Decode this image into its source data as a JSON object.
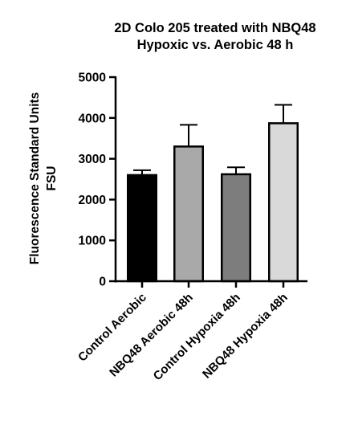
{
  "chart_data": {
    "type": "bar",
    "title_lines": [
      "2D Colo 205 treated with NBQ48",
      "Hypoxic vs. Aerobic  48 h"
    ],
    "ylabel_lines": [
      "Fluorescence Standard Units",
      "FSU"
    ],
    "xlabel": "",
    "ylim": [
      0,
      5000
    ],
    "yticks": [
      0,
      1000,
      2000,
      3000,
      4000,
      5000
    ],
    "categories": [
      "Control Aerobic",
      "NBQ48 Aerobic 48h",
      "Control Hypoxia 48h",
      "NBQ48 Hypoxia 48h"
    ],
    "values": [
      2600,
      3300,
      2620,
      3870
    ],
    "error_upper": [
      120,
      530,
      170,
      450
    ],
    "colors": [
      "#000000",
      "#a9a9a9",
      "#7d7d7d",
      "#d9d9d9"
    ],
    "grid": false,
    "legend": "none"
  }
}
